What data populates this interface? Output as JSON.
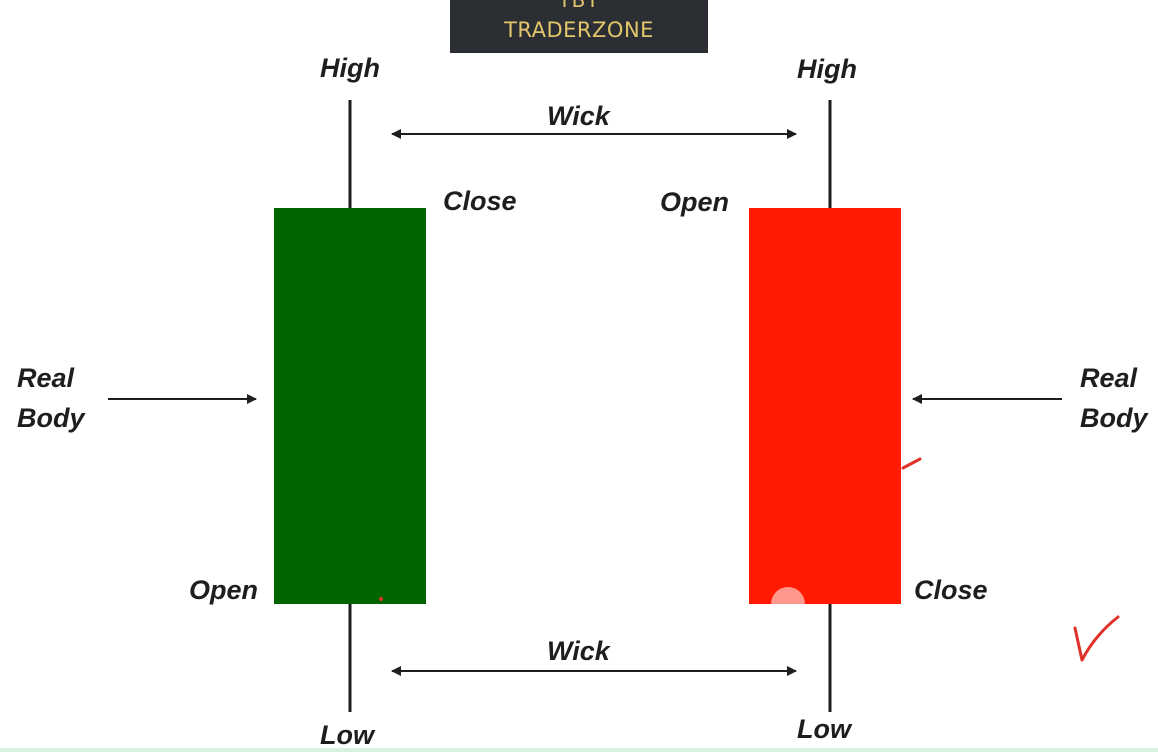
{
  "brand": {
    "line1": "YBT",
    "line2": "TRADERZONE",
    "color": "#e3c66b",
    "background": "#2b2f33"
  },
  "bullish_candle": {
    "color": "#006400",
    "labels": {
      "high": "High",
      "close": "Close",
      "open": "Open",
      "low": "Low"
    }
  },
  "bearish_candle": {
    "color": "#ff1a00",
    "labels": {
      "high": "High",
      "open": "Open",
      "close": "Close",
      "low": "Low"
    }
  },
  "wick_top": {
    "label": "Wick"
  },
  "wick_bottom": {
    "label": "Wick"
  },
  "real_body_left": {
    "line1": "Real",
    "line2": "Body"
  },
  "real_body_right": {
    "line1": "Real",
    "line2": "Body"
  },
  "annotation_color": "#e0322a"
}
